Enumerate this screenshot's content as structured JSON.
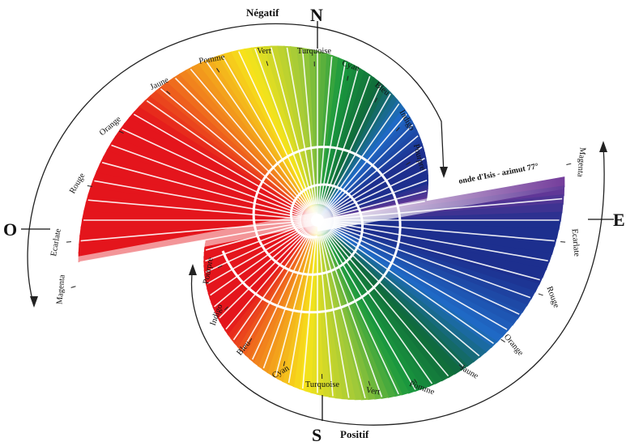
{
  "cardinals": {
    "north": "N",
    "south": "S",
    "west": "O",
    "east": "E"
  },
  "titles": {
    "top": "Négatif",
    "bottom": "Positif"
  },
  "annotation": "onde d'Isis - azimut 77°",
  "upper_labels": [
    "Magenta",
    "Ecarlate",
    "Rouge",
    "Orange",
    "Jaune",
    "Pomme",
    "Vert",
    "Turquoise",
    "Cyan",
    "Bleu",
    "Indigo",
    "Pourpre"
  ],
  "lower_labels": [
    "Pourpre",
    "Indigo",
    "Bleu",
    "Cyan",
    "Turquoise",
    "Vert",
    "Pomme",
    "Jaune",
    "Orange",
    "Rouge",
    "Ecarlate",
    "Magenta"
  ],
  "colors": {
    "red": "#e4151c",
    "orange": "#f0731d",
    "yellow": "#f7e41b",
    "green": "#1b9a3e",
    "dark_green": "#0f6a3a",
    "blue": "#1f6ac6",
    "indigo": "#1d2f8e",
    "purple": "#7a3a9a"
  }
}
